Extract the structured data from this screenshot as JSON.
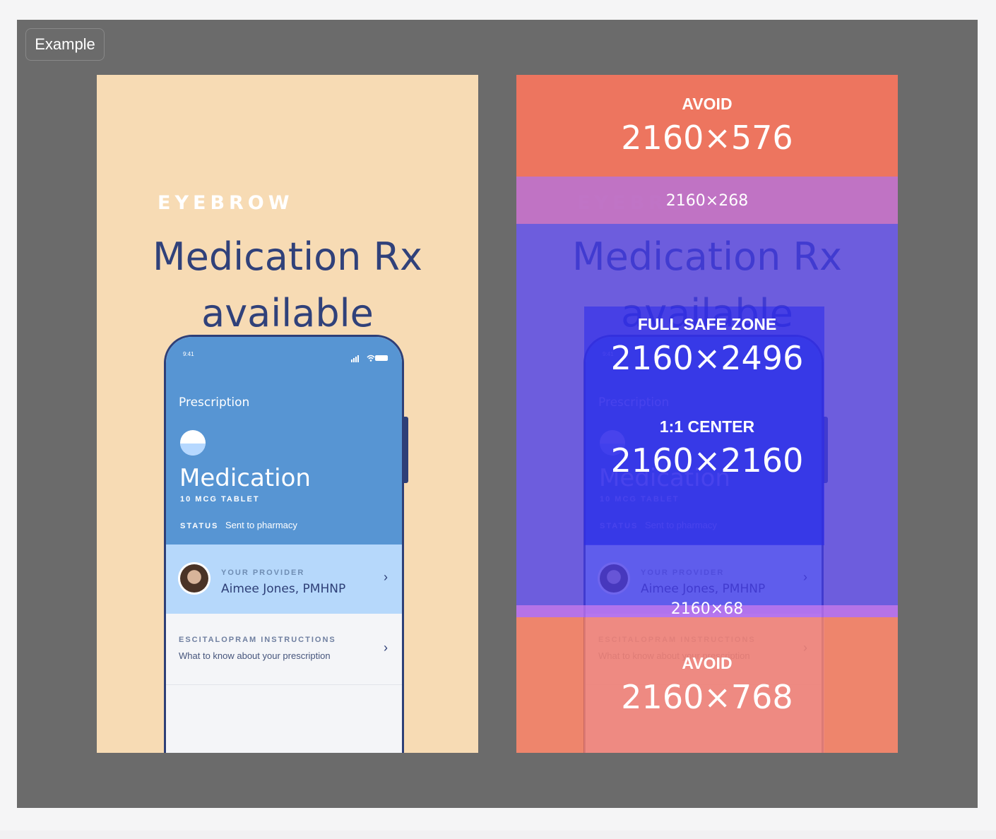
{
  "example_button": "Example",
  "creative": {
    "eyebrow": "EYEBROW",
    "headline_line1": "Medication Rx",
    "headline_line2": "available",
    "phone": {
      "time": "9:41",
      "section_title": "Prescription",
      "medication_name": "Medication",
      "dose": "10 MCG TABLET",
      "status_label": "STATUS",
      "status_value": "Sent to pharmacy",
      "provider_kicker": "YOUR PROVIDER",
      "provider_name": "Aimee Jones, PMHNP",
      "instructions_kicker": "ESCITALOPRAM INSTRUCTIONS",
      "instructions_sub": "What to know about your prescription"
    }
  },
  "zones": {
    "avoid_top_title": "AVOID",
    "avoid_top_dim": "2160×576",
    "band_top_dim": "2160×268",
    "safe_title": "FULL SAFE ZONE",
    "safe_dim": "2160×2496",
    "center_title": "1:1 CENTER",
    "center_dim": "2160×2160",
    "band_bottom_dim": "2160×68",
    "avoid_bottom_title": "AVOID",
    "avoid_bottom_dim": "2160×768"
  },
  "colors": {
    "background_peach": "#f7dbb4",
    "navy": "#30417a",
    "phone_blue": "#5795d3",
    "avoid_red": "#ec725c",
    "safe_purple": "#463ae8"
  }
}
